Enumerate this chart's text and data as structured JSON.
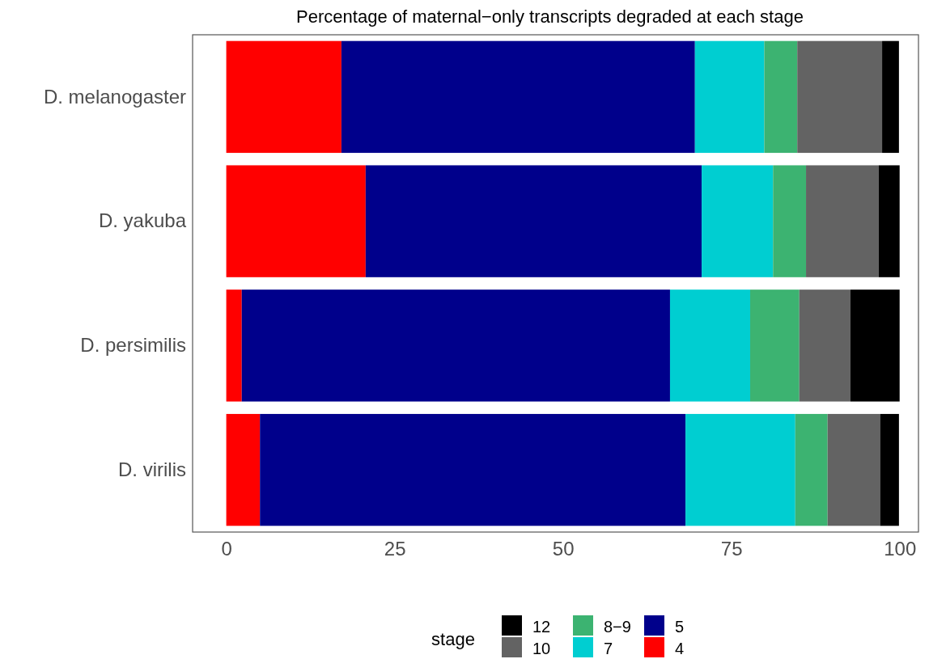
{
  "chart_data": {
    "type": "bar",
    "orientation": "horizontal",
    "stacked": true,
    "title": "Percentage of maternal−only transcripts degraded at each stage",
    "legend_title": "stage",
    "categories": [
      "D. melanogaster",
      "D. yakuba",
      "D. persimilis",
      "D. virilis"
    ],
    "series": [
      {
        "name": "4",
        "color": "#ff0000",
        "values": [
          17.1,
          20.7,
          2.3,
          5.0
        ]
      },
      {
        "name": "5",
        "color": "#00008b",
        "values": [
          52.5,
          49.9,
          63.6,
          63.2
        ]
      },
      {
        "name": "7",
        "color": "#00ced1",
        "values": [
          10.3,
          10.6,
          11.9,
          16.3
        ]
      },
      {
        "name": "8−9",
        "color": "#3cb371",
        "values": [
          4.9,
          4.9,
          7.3,
          4.8
        ]
      },
      {
        "name": "10",
        "color": "#636363",
        "values": [
          12.6,
          10.8,
          7.6,
          7.8
        ]
      },
      {
        "name": "12",
        "color": "#000000",
        "values": [
          2.5,
          3.1,
          7.3,
          2.8
        ]
      }
    ],
    "xlim": [
      -5,
      102.8
    ],
    "xticks": [
      0,
      25,
      50,
      75,
      100
    ],
    "grid": false,
    "legend": "bottom"
  }
}
